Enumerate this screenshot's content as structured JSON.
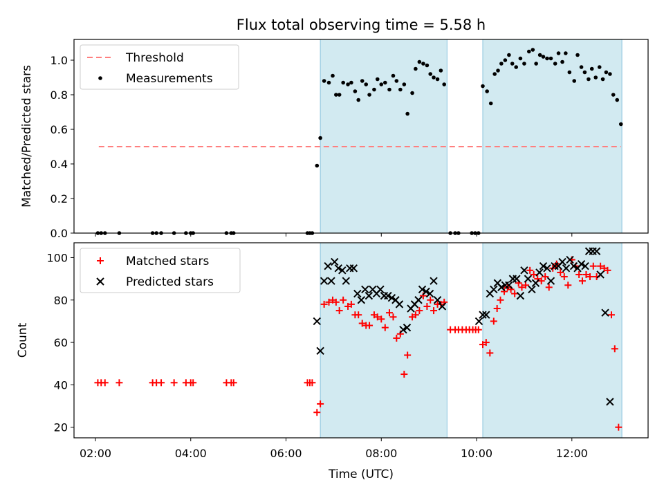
{
  "title": "Flux total observing time = 5.58 h",
  "chart_data": [
    {
      "type": "scatter",
      "ylabel": "Matched/Predicted stars",
      "ylim": [
        0,
        1.12
      ],
      "yticks": [
        0.0,
        0.2,
        0.4,
        0.6,
        0.8,
        1.0
      ],
      "ytick_labels": [
        "0.0",
        "0.2",
        "0.4",
        "0.6",
        "0.8",
        "1.0"
      ],
      "xlim": [
        1.55,
        13.6
      ],
      "grid": false,
      "legend_position": "top-left",
      "legend": [
        "Threshold",
        "Measurements"
      ],
      "threshold": {
        "name": "Threshold",
        "value": 0.5,
        "x_range": [
          2.07,
          13.03
        ],
        "color": "#ff7f7f",
        "style": "dashed"
      },
      "shaded_intervals": [
        [
          6.72,
          9.38
        ],
        [
          10.13,
          13.05
        ]
      ],
      "shade_color": "#add8e6",
      "series": [
        {
          "name": "Measurements",
          "color": "#000000",
          "marker": "dot",
          "points": [
            [
              2.05,
              0
            ],
            [
              2.12,
              0
            ],
            [
              2.2,
              0
            ],
            [
              2.5,
              0
            ],
            [
              3.2,
              0
            ],
            [
              3.28,
              0
            ],
            [
              3.38,
              0
            ],
            [
              3.65,
              0
            ],
            [
              3.9,
              0
            ],
            [
              4.0,
              0
            ],
            [
              4.05,
              0
            ],
            [
              4.75,
              0
            ],
            [
              4.85,
              0
            ],
            [
              4.9,
              0
            ],
            [
              6.45,
              0
            ],
            [
              6.5,
              0
            ],
            [
              6.55,
              0
            ],
            [
              6.65,
              0.39
            ],
            [
              6.72,
              0.55
            ],
            [
              6.8,
              0.88
            ],
            [
              6.9,
              0.87
            ],
            [
              6.98,
              0.91
            ],
            [
              7.05,
              0.8
            ],
            [
              7.12,
              0.8
            ],
            [
              7.2,
              0.87
            ],
            [
              7.3,
              0.86
            ],
            [
              7.37,
              0.87
            ],
            [
              7.45,
              0.82
            ],
            [
              7.52,
              0.77
            ],
            [
              7.6,
              0.88
            ],
            [
              7.68,
              0.86
            ],
            [
              7.75,
              0.8
            ],
            [
              7.85,
              0.83
            ],
            [
              7.92,
              0.89
            ],
            [
              8.0,
              0.86
            ],
            [
              8.08,
              0.87
            ],
            [
              8.17,
              0.83
            ],
            [
              8.25,
              0.91
            ],
            [
              8.32,
              0.88
            ],
            [
              8.4,
              0.83
            ],
            [
              8.48,
              0.86
            ],
            [
              8.55,
              0.69
            ],
            [
              8.65,
              0.81
            ],
            [
              8.72,
              0.95
            ],
            [
              8.8,
              0.99
            ],
            [
              8.88,
              0.98
            ],
            [
              8.96,
              0.97
            ],
            [
              9.03,
              0.92
            ],
            [
              9.1,
              0.9
            ],
            [
              9.18,
              0.89
            ],
            [
              9.25,
              0.94
            ],
            [
              9.32,
              0.86
            ],
            [
              9.45,
              0
            ],
            [
              9.55,
              0
            ],
            [
              9.62,
              0
            ],
            [
              9.9,
              0
            ],
            [
              9.97,
              0
            ],
            [
              10.04,
              0
            ],
            [
              10.13,
              0.85
            ],
            [
              10.22,
              0.82
            ],
            [
              10.3,
              0.75
            ],
            [
              10.38,
              0.92
            ],
            [
              10.45,
              0.94
            ],
            [
              10.52,
              0.98
            ],
            [
              10.6,
              1.0
            ],
            [
              10.68,
              1.03
            ],
            [
              10.75,
              0.98
            ],
            [
              10.83,
              0.96
            ],
            [
              10.92,
              1.01
            ],
            [
              11.0,
              0.98
            ],
            [
              11.1,
              1.05
            ],
            [
              11.18,
              1.06
            ],
            [
              11.25,
              0.98
            ],
            [
              11.33,
              1.03
            ],
            [
              11.4,
              1.02
            ],
            [
              11.48,
              1.01
            ],
            [
              11.56,
              1.01
            ],
            [
              11.65,
              0.98
            ],
            [
              11.72,
              1.04
            ],
            [
              11.8,
              0.99
            ],
            [
              11.87,
              1.04
            ],
            [
              11.95,
              0.93
            ],
            [
              12.05,
              0.88
            ],
            [
              12.12,
              1.03
            ],
            [
              12.2,
              0.96
            ],
            [
              12.27,
              0.93
            ],
            [
              12.35,
              0.89
            ],
            [
              12.42,
              0.95
            ],
            [
              12.5,
              0.9
            ],
            [
              12.58,
              0.96
            ],
            [
              12.65,
              0.89
            ],
            [
              12.72,
              0.93
            ],
            [
              12.8,
              0.92
            ],
            [
              12.87,
              0.8
            ],
            [
              12.95,
              0.77
            ],
            [
              13.03,
              0.63
            ]
          ]
        }
      ]
    },
    {
      "type": "scatter",
      "xlabel": "Time (UTC)",
      "ylabel": "Count",
      "ylim": [
        15,
        107
      ],
      "yticks": [
        20,
        40,
        60,
        80,
        100
      ],
      "ytick_labels": [
        "20",
        "40",
        "60",
        "80",
        "100"
      ],
      "xlim": [
        1.55,
        13.6
      ],
      "xticks": [
        2,
        4,
        6,
        8,
        10,
        12
      ],
      "xtick_labels": [
        "02:00",
        "04:00",
        "06:00",
        "08:00",
        "10:00",
        "12:00"
      ],
      "grid": false,
      "legend_position": "top-left",
      "legend": [
        "Matched stars",
        "Predicted stars"
      ],
      "shaded_intervals": [
        [
          6.72,
          9.38
        ],
        [
          10.13,
          13.05
        ]
      ],
      "shade_color": "#add8e6",
      "series": [
        {
          "name": "Matched stars",
          "color": "#ff0000",
          "marker": "plus",
          "points": [
            [
              2.05,
              41
            ],
            [
              2.12,
              41
            ],
            [
              2.2,
              41
            ],
            [
              2.5,
              41
            ],
            [
              3.2,
              41
            ],
            [
              3.28,
              41
            ],
            [
              3.38,
              41
            ],
            [
              3.65,
              41
            ],
            [
              3.9,
              41
            ],
            [
              4.0,
              41
            ],
            [
              4.05,
              41
            ],
            [
              4.75,
              41
            ],
            [
              4.85,
              41
            ],
            [
              4.9,
              41
            ],
            [
              6.45,
              41
            ],
            [
              6.5,
              41
            ],
            [
              6.55,
              41
            ],
            [
              6.65,
              27
            ],
            [
              6.72,
              31
            ],
            [
              6.8,
              78
            ],
            [
              6.9,
              79
            ],
            [
              6.98,
              80
            ],
            [
              7.05,
              79
            ],
            [
              7.12,
              75
            ],
            [
              7.2,
              80
            ],
            [
              7.3,
              77
            ],
            [
              7.37,
              78
            ],
            [
              7.45,
              73
            ],
            [
              7.52,
              73
            ],
            [
              7.6,
              69
            ],
            [
              7.68,
              68
            ],
            [
              7.75,
              68
            ],
            [
              7.85,
              73
            ],
            [
              7.92,
              72
            ],
            [
              8.0,
              71
            ],
            [
              8.08,
              67
            ],
            [
              8.17,
              74
            ],
            [
              8.25,
              72
            ],
            [
              8.32,
              62
            ],
            [
              8.4,
              64
            ],
            [
              8.48,
              45
            ],
            [
              8.55,
              54
            ],
            [
              8.65,
              72
            ],
            [
              8.72,
              73
            ],
            [
              8.8,
              75
            ],
            [
              8.88,
              82
            ],
            [
              8.96,
              77
            ],
            [
              9.03,
              80
            ],
            [
              9.1,
              75
            ],
            [
              9.18,
              78
            ],
            [
              9.25,
              78
            ],
            [
              9.32,
              79
            ],
            [
              9.45,
              66
            ],
            [
              9.55,
              66
            ],
            [
              9.62,
              66
            ],
            [
              9.7,
              66
            ],
            [
              9.78,
              66
            ],
            [
              9.85,
              66
            ],
            [
              9.92,
              66
            ],
            [
              9.98,
              66
            ],
            [
              10.04,
              66
            ],
            [
              10.13,
              59
            ],
            [
              10.2,
              60
            ],
            [
              10.28,
              55
            ],
            [
              10.36,
              70
            ],
            [
              10.43,
              76
            ],
            [
              10.5,
              80
            ],
            [
              10.58,
              84
            ],
            [
              10.65,
              86
            ],
            [
              10.72,
              85
            ],
            [
              10.8,
              83
            ],
            [
              10.88,
              88
            ],
            [
              10.95,
              86
            ],
            [
              11.03,
              87
            ],
            [
              11.12,
              94
            ],
            [
              11.2,
              92
            ],
            [
              11.28,
              90
            ],
            [
              11.36,
              89
            ],
            [
              11.44,
              91
            ],
            [
              11.52,
              86
            ],
            [
              11.6,
              95
            ],
            [
              11.68,
              97
            ],
            [
              11.76,
              93
            ],
            [
              11.84,
              91
            ],
            [
              11.92,
              87
            ],
            [
              12.0,
              99
            ],
            [
              12.08,
              96
            ],
            [
              12.15,
              92
            ],
            [
              12.22,
              89
            ],
            [
              12.3,
              92
            ],
            [
              12.38,
              91
            ],
            [
              12.45,
              96
            ],
            [
              12.52,
              91
            ],
            [
              12.6,
              96
            ],
            [
              12.68,
              95
            ],
            [
              12.75,
              94
            ],
            [
              12.83,
              73
            ],
            [
              12.9,
              57
            ],
            [
              12.98,
              20
            ]
          ]
        },
        {
          "name": "Predicted stars",
          "color": "#000000",
          "marker": "x",
          "points": [
            [
              6.65,
              70
            ],
            [
              6.72,
              56
            ],
            [
              6.8,
              89
            ],
            [
              6.88,
              96
            ],
            [
              6.95,
              89
            ],
            [
              7.02,
              98
            ],
            [
              7.1,
              95
            ],
            [
              7.18,
              94
            ],
            [
              7.26,
              89
            ],
            [
              7.34,
              95
            ],
            [
              7.42,
              95
            ],
            [
              7.5,
              83
            ],
            [
              7.58,
              80
            ],
            [
              7.66,
              85
            ],
            [
              7.74,
              82
            ],
            [
              7.82,
              85
            ],
            [
              7.9,
              83
            ],
            [
              7.98,
              85
            ],
            [
              8.06,
              82
            ],
            [
              8.14,
              82
            ],
            [
              8.22,
              81
            ],
            [
              8.3,
              80
            ],
            [
              8.38,
              78
            ],
            [
              8.46,
              66
            ],
            [
              8.54,
              67
            ],
            [
              8.62,
              76
            ],
            [
              8.7,
              78
            ],
            [
              8.78,
              80
            ],
            [
              8.86,
              85
            ],
            [
              8.94,
              84
            ],
            [
              9.02,
              83
            ],
            [
              9.1,
              89
            ],
            [
              9.18,
              80
            ],
            [
              9.28,
              77
            ],
            [
              10.05,
              70
            ],
            [
              10.13,
              73
            ],
            [
              10.2,
              73
            ],
            [
              10.28,
              83
            ],
            [
              10.36,
              85
            ],
            [
              10.44,
              88
            ],
            [
              10.52,
              86
            ],
            [
              10.6,
              87
            ],
            [
              10.68,
              87
            ],
            [
              10.76,
              90
            ],
            [
              10.84,
              90
            ],
            [
              10.92,
              82
            ],
            [
              11.0,
              94
            ],
            [
              11.08,
              90
            ],
            [
              11.16,
              85
            ],
            [
              11.24,
              88
            ],
            [
              11.32,
              93
            ],
            [
              11.4,
              96
            ],
            [
              11.48,
              95
            ],
            [
              11.56,
              89
            ],
            [
              11.64,
              96
            ],
            [
              11.72,
              96
            ],
            [
              11.8,
              98
            ],
            [
              11.88,
              95
            ],
            [
              11.96,
              99
            ],
            [
              12.04,
              96
            ],
            [
              12.12,
              95
            ],
            [
              12.2,
              97
            ],
            [
              12.28,
              96
            ],
            [
              12.36,
              103
            ],
            [
              12.44,
              103
            ],
            [
              12.52,
              103
            ],
            [
              12.6,
              92
            ],
            [
              12.7,
              74
            ],
            [
              12.8,
              32
            ]
          ]
        }
      ]
    }
  ]
}
